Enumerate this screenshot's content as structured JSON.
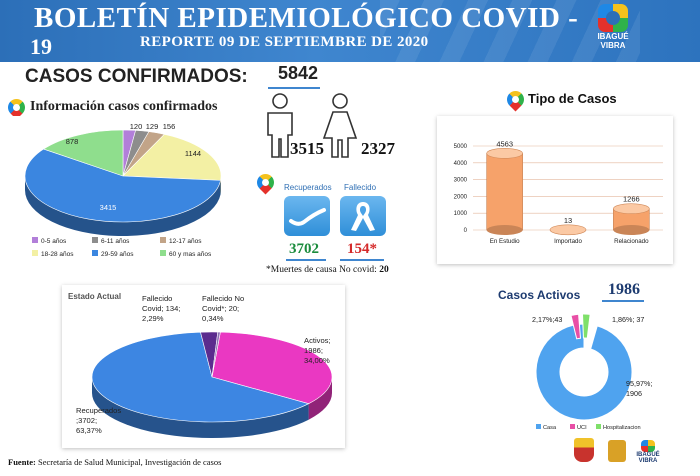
{
  "header": {
    "title_line1": "BOLETÍN EPIDEMIOLÓGICO COVID -",
    "title_line2": "19",
    "subtitle": "REPORTE 09 DE SEPTIEMBRE DE 2020",
    "logo_line1": "IBAGUÉ",
    "logo_line2": "VIBRA"
  },
  "confirmados": {
    "label": "CASOS CONFIRMADOS:",
    "value": "5842"
  },
  "info_title": "Información casos confirmados",
  "gender": {
    "male": "3515",
    "female": "2327"
  },
  "outcomes": {
    "recuperados_label": "Recuperados",
    "recuperados_value": "3702",
    "fallecido_label": "Fallecido",
    "fallecido_value": "154*",
    "note_text": "*Muertes de causa No covid:",
    "note_value": "20"
  },
  "footer": {
    "label": "Fuente:",
    "text": "Secretaría de Salud Municipal, Investigación de casos"
  },
  "colors": {
    "header_blue": "#2c6fb8",
    "age_0_5": "#b27fd9",
    "age_6_11": "#8d8d8d",
    "age_12_17": "#c2a488",
    "age_18_28": "#f3f0a4",
    "age_29_59": "#3b86e0",
    "age_60_plus": "#8fde8d",
    "bar_orange": "#f6a26a",
    "estado_activos": "#ea38c2",
    "estado_recuperados": "#3d86e2",
    "casa": "#4fa3ef",
    "uci": "#e84fa6",
    "hospitalizacion": "#7fe06a"
  },
  "chart_data": [
    {
      "type": "pie",
      "categories": [
        "0-5 años",
        "6-11 años",
        "12-17 años",
        "18-28 años",
        "29-59 años",
        "60 y mas años"
      ],
      "values": [
        120,
        129,
        156,
        1144,
        3415,
        878
      ],
      "data_labels": [
        "120",
        "129",
        "156",
        "1144",
        "3415",
        "878"
      ],
      "legend": "bottom"
    },
    {
      "type": "bar",
      "title": "Tipo de Casos",
      "categories": [
        "En Estudio",
        "Importado",
        "Relacionado"
      ],
      "values": [
        4563,
        13,
        1266
      ],
      "ylim": [
        0,
        5000
      ],
      "yticks": [
        "0",
        "1000",
        "2000",
        "3000",
        "4000",
        "5000"
      ],
      "grid": true
    },
    {
      "type": "pie",
      "title": "Estado Actual",
      "categories": [
        "Activos",
        "Recuperados",
        "Fallecido Covid",
        "Fallecido No Covid*"
      ],
      "values": [
        1986,
        3702,
        134,
        20
      ],
      "labels": [
        [
          "Activos;",
          "1986;",
          "34,00%"
        ],
        [
          "Recuperados",
          ";3702;",
          "63,37%"
        ],
        [
          "Fallecido",
          "Covid; 134;",
          "2,29%"
        ],
        [
          "Fallecido No",
          "Covid*; 20;",
          "0,34%"
        ]
      ]
    },
    {
      "type": "pie",
      "title": "Casos Activos",
      "total": "1986",
      "categories": [
        "Casa",
        "UCI",
        "Hospitalizacion"
      ],
      "values": [
        1906,
        43,
        37
      ],
      "labels": [
        [
          "95,97%;",
          "1906"
        ],
        [
          "2,17%;43"
        ],
        [
          "1,86%; 37"
        ]
      ],
      "legend": "bottom"
    }
  ]
}
